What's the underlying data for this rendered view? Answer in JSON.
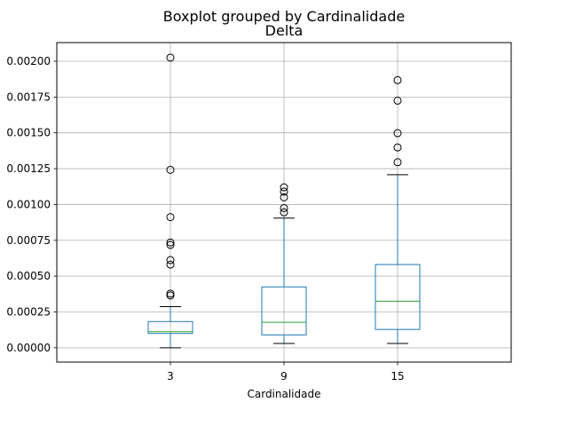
{
  "chart_data": {
    "type": "boxplot",
    "suptitle": "Boxplot grouped by Cardinalidade",
    "title": "Delta",
    "xlabel": "Cardinalidade",
    "ylabel": "",
    "categories": [
      "3",
      "9",
      "15"
    ],
    "ylim": [
      -0.0001,
      0.00213
    ],
    "yticks": [
      0.0,
      0.00025,
      0.0005,
      0.00075,
      0.001,
      0.00125,
      0.0015,
      0.00175,
      0.002
    ],
    "ytick_labels": [
      "0.00000",
      "0.00025",
      "0.00050",
      "0.00075",
      "0.00100",
      "0.00125",
      "0.00150",
      "0.00175",
      "0.00200"
    ],
    "grid": true,
    "boxes": [
      {
        "category": "3",
        "whisker_low": 0.0,
        "q1": 0.0001,
        "median": 0.000112,
        "q3": 0.000183,
        "whisker_high": 0.000287,
        "outliers": [
          0.000365,
          0.000378,
          0.000581,
          0.000612,
          0.000718,
          0.000735,
          0.000912,
          0.001242,
          0.002025
        ]
      },
      {
        "category": "9",
        "whisker_low": 3e-05,
        "q1": 9e-05,
        "median": 0.000178,
        "q3": 0.000425,
        "whisker_high": 0.000905,
        "outliers": [
          0.000945,
          0.000975,
          0.00105,
          0.00109,
          0.00112
        ]
      },
      {
        "category": "15",
        "whisker_low": 3e-05,
        "q1": 0.000128,
        "median": 0.000325,
        "q3": 0.000581,
        "whisker_high": 0.001208,
        "outliers": [
          0.001295,
          0.001398,
          0.001498,
          0.001725,
          0.001868
        ]
      }
    ],
    "colors": {
      "box": "#1f77b4",
      "median": "#2ca02c",
      "whisker_cap": "#000000",
      "grid": "#b0b0b0",
      "axes": "#000000"
    }
  }
}
